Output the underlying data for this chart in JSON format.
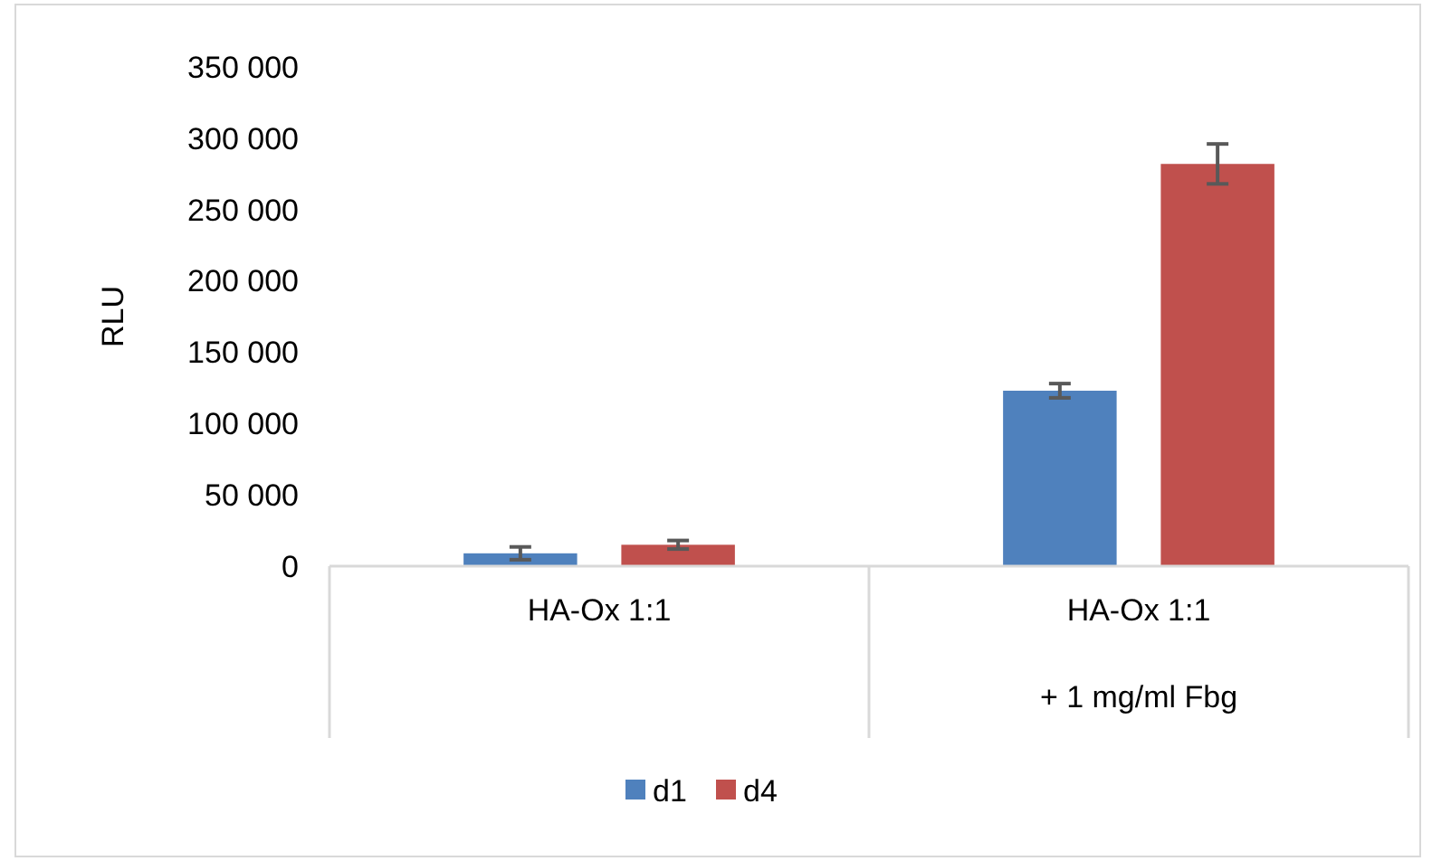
{
  "chart_data": {
    "type": "bar",
    "ylabel": "RLU",
    "categories": [
      "HA-Ox 1:1",
      "HA-Ox 1:1\n+ 1 mg/ml Fbg"
    ],
    "series": [
      {
        "name": "d1",
        "color": "#4f81bd",
        "values": [
          9000,
          123000
        ],
        "errors": [
          4500,
          5000
        ]
      },
      {
        "name": "d4",
        "color": "#c0504d",
        "values": [
          15000,
          282000
        ],
        "errors": [
          3000,
          14000
        ]
      }
    ],
    "ylim": [
      0,
      350000
    ],
    "yticks": [
      {
        "value": 0,
        "label": "0"
      },
      {
        "value": 50000,
        "label": "50 000"
      },
      {
        "value": 100000,
        "label": "100 000"
      },
      {
        "value": 150000,
        "label": "150 000"
      },
      {
        "value": 200000,
        "label": "200 000"
      },
      {
        "value": 250000,
        "label": "250 000"
      },
      {
        "value": 300000,
        "label": "300 000"
      },
      {
        "value": 350000,
        "label": "350 000"
      }
    ],
    "grid": false,
    "legend": "bottom"
  }
}
